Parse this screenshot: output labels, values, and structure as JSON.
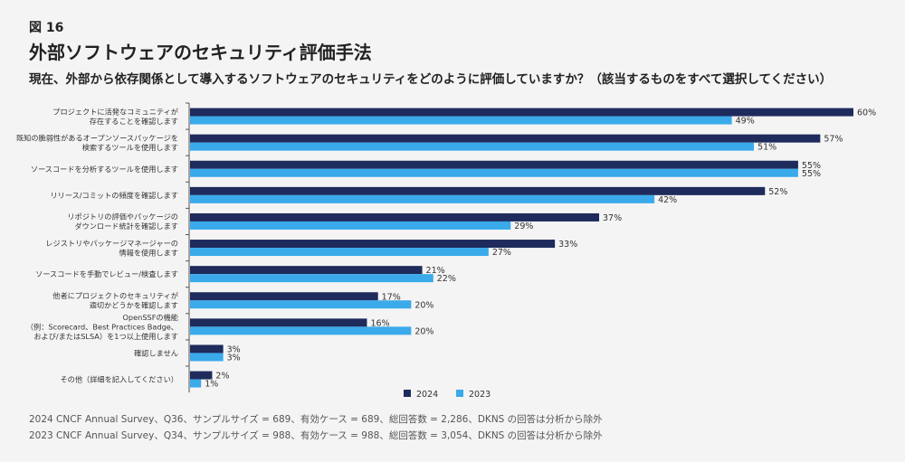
{
  "figure_label": "図 16",
  "title": "外部ソフトウェアのセキュリティ評価手法",
  "subtitle": "現在、外部から依存関係として導入するソフトウェアのセキュリティをどのように評価していますか？（該当するものをすべて選択してください）",
  "footnotes": [
    "2024 CNCF Annual Survey、Q36、サンプルサイズ = 689、有効ケース = 689、総回答数 = 2,286、DKNS の回答は分析から除外",
    "2023 CNCF Annual Survey、Q34、サンプルサイズ = 988、有効ケース = 988、総回答数 = 3,054、DKNS の回答は分析から除外"
  ],
  "chart_data": {
    "type": "bar",
    "orientation": "horizontal",
    "categories": [
      [
        "プロジェクトに活発なコミュニティが",
        "存在することを確認します"
      ],
      [
        "既知の脆弱性があるオープンソースパッケージを",
        "検索するツールを使用します"
      ],
      [
        "ソースコードを分析するツールを使用します"
      ],
      [
        "リリース/コミットの頻度を確認します"
      ],
      [
        "リポジトリの評価やパッケージの",
        "ダウンロード統計を確認します"
      ],
      [
        "レジストリやパッケージマネージャーの",
        "情報を使用します"
      ],
      [
        "ソースコードを手動でレビュー/検査します"
      ],
      [
        "他者にプロジェクトのセキュリティが",
        "適切かどうかを確認します"
      ],
      [
        "OpenSSFの機能",
        "（例：Scorecard、Best Practices Badge、",
        "および/またはSLSA）を1つ以上使用します"
      ],
      [
        "確認しません"
      ],
      [
        "その他（詳細を記入してください）"
      ]
    ],
    "series": [
      {
        "name": "2024",
        "color": "#1e2b5c",
        "values": [
          60,
          57,
          55,
          52,
          37,
          33,
          21,
          17,
          16,
          3,
          2
        ]
      },
      {
        "name": "2023",
        "color": "#3aaaea",
        "values": [
          49,
          51,
          55,
          42,
          29,
          27,
          22,
          20,
          20,
          3,
          1
        ]
      }
    ],
    "value_suffix": "%",
    "xlim": [
      0,
      60
    ],
    "grid": false,
    "legend": "bottom"
  }
}
